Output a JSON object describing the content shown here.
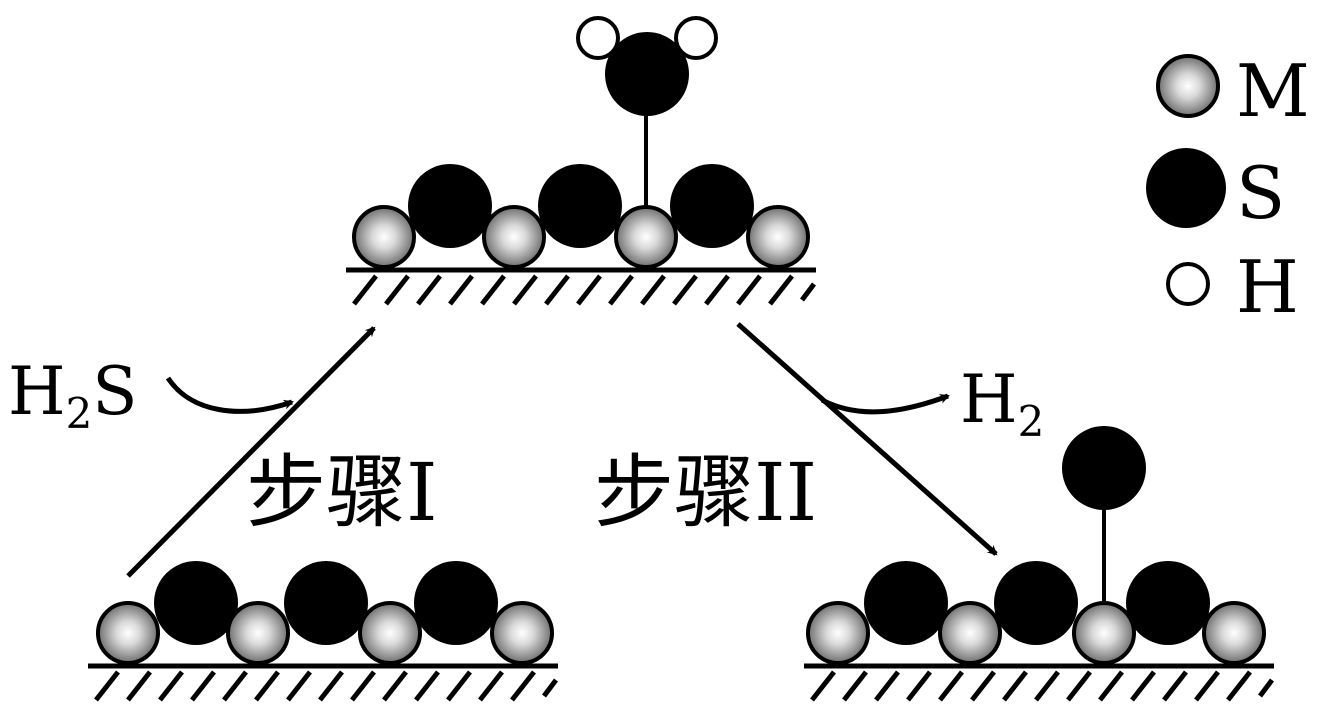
{
  "legend": {
    "items": [
      {
        "symbol": "M",
        "label": "M"
      },
      {
        "symbol": "S",
        "label": "S"
      },
      {
        "symbol": "H",
        "label": "H"
      }
    ]
  },
  "reactant": {
    "main": "H",
    "sub": "2",
    "tail": "S"
  },
  "product": {
    "main": "H",
    "sub": "2"
  },
  "steps": {
    "step1": "步骤I",
    "step2": "步骤II"
  },
  "colors": {
    "sulfur": "#000000",
    "metal_edge": "#000000",
    "metal_light": "#f4f4f4",
    "metal_dark": "#6a6a6a",
    "hydrogen": "#ffffff"
  }
}
